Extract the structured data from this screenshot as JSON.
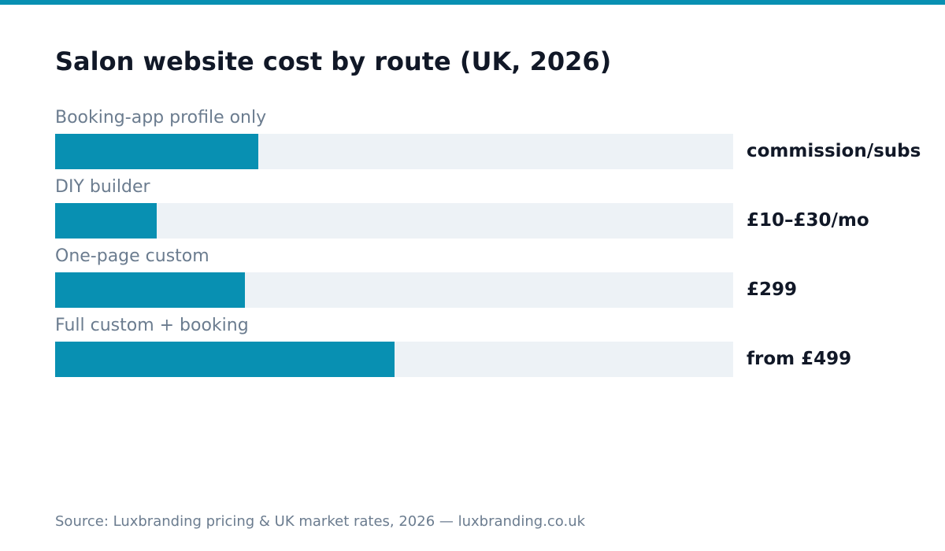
{
  "colors": {
    "accent": "#0890b2",
    "track": "#edf2f6",
    "title": "#111827",
    "label": "#6b7c8f"
  },
  "chart_data": {
    "type": "bar",
    "orientation": "horizontal",
    "title": "Salon website cost by route (UK, 2026)",
    "categories": [
      "Booking-app profile only",
      "DIY builder",
      "One-page custom",
      "Full custom + booking"
    ],
    "values": [
      0.3,
      0.15,
      0.28,
      0.5
    ],
    "value_labels": [
      "commission/subs",
      "£10–£30/mo",
      "£299",
      "from £499"
    ],
    "xlim": [
      0,
      1
    ],
    "grid": false,
    "legend": "none"
  },
  "footer": {
    "source": "Source: Luxbranding pricing & UK market rates, 2026 — luxbranding.co.uk"
  }
}
